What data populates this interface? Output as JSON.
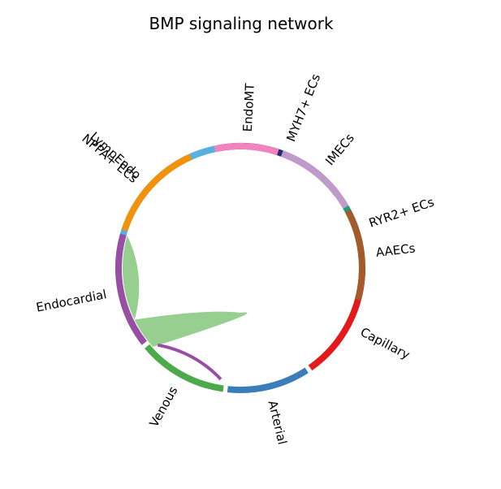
{
  "title": "BMP signaling network",
  "nodes": [
    {
      "id": "nppa",
      "label": "NPPA+ ECs",
      "color": "#56B0E0",
      "start": 272,
      "end": 348
    },
    {
      "id": "myh7",
      "label": "MYH7+ ECs",
      "color": "#242C6E",
      "start": 350,
      "end": 413
    },
    {
      "id": "ryr2",
      "label": "RYR2+ ECs",
      "color": "#1C9E78",
      "start": 415,
      "end": 447
    },
    {
      "id": "capillary",
      "label": "Capillary",
      "color": "#E31A1C",
      "start": 450,
      "end": 505
    },
    {
      "id": "arterial",
      "label": "Arterial",
      "color": "#3A7DB8",
      "start": 507,
      "end": 546
    },
    {
      "id": "venous",
      "label": "Venous",
      "color": "#4DAA4A",
      "start": 548,
      "end": 590
    },
    {
      "id": "endocardial",
      "label": "Endocardial",
      "color": "#984EA3",
      "start": 592,
      "end": 646
    },
    {
      "id": "lympendo",
      "label": "LympEndo",
      "color": "#F0920C",
      "start": 648,
      "end": 696
    },
    {
      "id": "endomt",
      "label": "EndoMT",
      "color": "#F283BE",
      "start": 708,
      "end": 738
    },
    {
      "id": "imecs",
      "label": "IMECs",
      "color": "#BF9ACB",
      "start": 740,
      "end": 780
    },
    {
      "id": "aaecs",
      "label": "AAECs",
      "color": "#A55A2A",
      "start": 782,
      "end": 825
    }
  ],
  "links": [
    {
      "source": "endocardial",
      "target": "venous",
      "color": "#96CF90"
    }
  ]
}
